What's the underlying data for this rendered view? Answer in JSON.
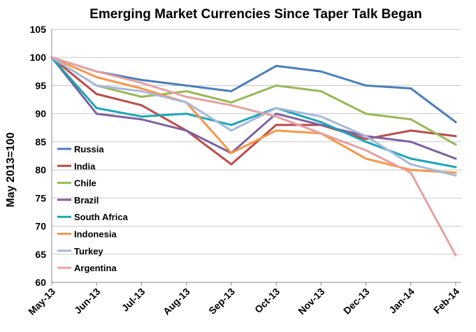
{
  "chart_data": {
    "type": "line",
    "title": "Emerging Market Currencies Since Taper Talk Began",
    "ylabel": "May 2013=100",
    "xlabel": "",
    "ylim": [
      60,
      105
    ],
    "yticks": [
      60,
      65,
      70,
      75,
      80,
      85,
      90,
      95,
      100,
      105
    ],
    "x_ticklabels": [
      "May-13",
      "Jun-13",
      "Jul-13",
      "Aug-13",
      "Sep-13",
      "Oct-13",
      "Nov-13",
      "Dec-13",
      "Jan-14",
      "Feb-14"
    ],
    "grid": "horizontal",
    "legend_position": "bottom-left",
    "x": [
      "May-13",
      "Jun-13",
      "Jul-13",
      "Aug-13",
      "Sep-13",
      "Oct-13",
      "Nov-13",
      "Dec-13",
      "Jan-14",
      "Feb-14"
    ],
    "series": [
      {
        "name": "Russia",
        "color": "#4a7ebb",
        "values": [
          100,
          97.5,
          96,
          95,
          94,
          98.5,
          97.5,
          95,
          94.5,
          88.5
        ]
      },
      {
        "name": "India",
        "color": "#be4b48",
        "values": [
          100,
          93.5,
          91.5,
          87,
          81,
          88,
          88,
          85.5,
          87,
          86
        ]
      },
      {
        "name": "Chile",
        "color": "#98b954",
        "values": [
          100,
          95,
          93,
          94,
          92,
          95,
          94,
          90,
          89,
          84.5
        ]
      },
      {
        "name": "Brazil",
        "color": "#7d60a0",
        "values": [
          100,
          90,
          89,
          87,
          83,
          90,
          88,
          86,
          85,
          82
        ]
      },
      {
        "name": "South Africa",
        "color": "#1aa6b8",
        "values": [
          100,
          91,
          89.5,
          90,
          88,
          91,
          88.5,
          85,
          82,
          80.5
        ]
      },
      {
        "name": "Indonesia",
        "color": "#f79646",
        "values": [
          100,
          96.5,
          94.5,
          92,
          83,
          87,
          86.5,
          82,
          80,
          79.5
        ]
      },
      {
        "name": "Turkey",
        "color": "#a5b9dc",
        "values": [
          100,
          95,
          94,
          92,
          87,
          91,
          89.5,
          86,
          81,
          79
        ]
      },
      {
        "name": "Argentina",
        "color": "#e6a1a0",
        "values": [
          100,
          97.5,
          95.5,
          93,
          91.5,
          89.5,
          86.5,
          83.5,
          79.5,
          64.8
        ]
      }
    ]
  }
}
